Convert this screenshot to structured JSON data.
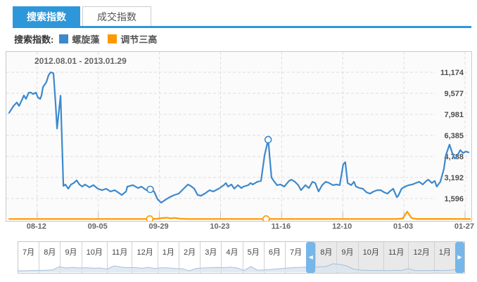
{
  "tabs": [
    {
      "label": "搜索指数",
      "active": true
    },
    {
      "label": "成交指数",
      "active": false
    }
  ],
  "legend": {
    "prefix": "搜索指数:",
    "items": [
      {
        "label": "螺旋藻",
        "color": "#3d89cd"
      },
      {
        "label": "调节三高",
        "color": "#ff9900"
      }
    ]
  },
  "colors": {
    "accent_blue": "#2e97d9",
    "series_blue": "#3d89cd",
    "series_orange": "#ff9900",
    "handle_blue": "#77b6e8",
    "selected_bg": "#e9e9e9"
  },
  "chart_data": {
    "type": "line",
    "title": "2012.08.01 - 2013.01.29",
    "xlabel": "",
    "ylabel": "",
    "grid": "dashed",
    "legend_position": "top",
    "x_range_days": [
      0,
      181
    ],
    "ylim": [
      0,
      11700
    ],
    "x_tick_labels": [
      "08-12",
      "09-05",
      "09-29",
      "10-23",
      "11-16",
      "12-10",
      "01-03",
      "01-27"
    ],
    "x_tick_days": [
      11,
      35,
      59,
      83,
      107,
      131,
      155,
      179
    ],
    "y_tick_labels": [
      "1,596",
      "3,192",
      "4,788",
      "6,385",
      "7,981",
      "9,577",
      "11,174"
    ],
    "y_tick_values": [
      1596,
      3192,
      4788,
      6385,
      7981,
      9577,
      11174
    ],
    "series": [
      {
        "name": "螺旋藻",
        "color": "#3d89cd",
        "points": [
          [
            0,
            8100
          ],
          [
            1.7,
            8620
          ],
          [
            3,
            8880
          ],
          [
            3.9,
            8620
          ],
          [
            5.2,
            9150
          ],
          [
            5.8,
            9420
          ],
          [
            6.6,
            9150
          ],
          [
            7.7,
            9630
          ],
          [
            8.6,
            9630
          ],
          [
            9.4,
            9520
          ],
          [
            10.5,
            9630
          ],
          [
            11.3,
            9260
          ],
          [
            12.2,
            9150
          ],
          [
            12.7,
            9420
          ],
          [
            13.3,
            10050
          ],
          [
            14.6,
            10430
          ],
          [
            15.5,
            10960
          ],
          [
            16.3,
            11174
          ],
          [
            17.4,
            11100
          ],
          [
            18.2,
            8880
          ],
          [
            18.8,
            6900
          ],
          [
            20.2,
            9400
          ],
          [
            21.3,
            2550
          ],
          [
            22.1,
            2660
          ],
          [
            23.2,
            2340
          ],
          [
            24.3,
            2660
          ],
          [
            25.4,
            2770
          ],
          [
            26.5,
            2980
          ],
          [
            27.6,
            2660
          ],
          [
            28.7,
            2500
          ],
          [
            29.8,
            2660
          ],
          [
            31.5,
            2450
          ],
          [
            33.1,
            2610
          ],
          [
            34.8,
            2340
          ],
          [
            36.5,
            2230
          ],
          [
            38.1,
            2340
          ],
          [
            39.8,
            2130
          ],
          [
            41.4,
            2230
          ],
          [
            43.1,
            2020
          ],
          [
            44.2,
            1860
          ],
          [
            45.9,
            2130
          ],
          [
            46.4,
            2500
          ],
          [
            48.6,
            2610
          ],
          [
            50.6,
            2390
          ],
          [
            51.9,
            2500
          ],
          [
            53.9,
            2230
          ],
          [
            55.4,
            2290
          ],
          [
            56.9,
            2130
          ],
          [
            58.3,
            1540
          ],
          [
            59.7,
            1280
          ],
          [
            61.3,
            1490
          ],
          [
            63,
            1700
          ],
          [
            64.9,
            1860
          ],
          [
            66.6,
            1970
          ],
          [
            68.5,
            2340
          ],
          [
            70.2,
            2660
          ],
          [
            71.3,
            2550
          ],
          [
            72.7,
            2340
          ],
          [
            74,
            1860
          ],
          [
            75.4,
            1810
          ],
          [
            76.8,
            1970
          ],
          [
            78.7,
            2230
          ],
          [
            80.1,
            2130
          ],
          [
            82.3,
            2340
          ],
          [
            84.3,
            2610
          ],
          [
            85.1,
            2770
          ],
          [
            85.9,
            2500
          ],
          [
            87.3,
            2660
          ],
          [
            88.4,
            2340
          ],
          [
            89.8,
            2610
          ],
          [
            91.2,
            2390
          ],
          [
            92,
            2500
          ],
          [
            93.9,
            2610
          ],
          [
            94.8,
            2770
          ],
          [
            95.6,
            2660
          ],
          [
            97.5,
            2870
          ],
          [
            98.9,
            2930
          ],
          [
            100.3,
            4890
          ],
          [
            101.7,
            6060
          ],
          [
            103,
            3190
          ],
          [
            103.9,
            2930
          ],
          [
            105.2,
            2610
          ],
          [
            106.6,
            2660
          ],
          [
            108,
            2500
          ],
          [
            109.9,
            2930
          ],
          [
            110.8,
            3030
          ],
          [
            112.2,
            2870
          ],
          [
            113.5,
            2610
          ],
          [
            114.6,
            2230
          ],
          [
            116.3,
            2610
          ],
          [
            117.7,
            2390
          ],
          [
            119.1,
            2870
          ],
          [
            120.2,
            2770
          ],
          [
            121.5,
            2130
          ],
          [
            122.9,
            2610
          ],
          [
            124.3,
            2870
          ],
          [
            125.7,
            2770
          ],
          [
            127.1,
            2610
          ],
          [
            128.5,
            2660
          ],
          [
            129.8,
            2610
          ],
          [
            131.2,
            4200
          ],
          [
            132,
            4360
          ],
          [
            132.9,
            2770
          ],
          [
            134.3,
            2610
          ],
          [
            135.4,
            2870
          ],
          [
            136.2,
            2500
          ],
          [
            137.6,
            2390
          ],
          [
            138.9,
            2340
          ],
          [
            140.3,
            2070
          ],
          [
            141.7,
            1970
          ],
          [
            143.1,
            2130
          ],
          [
            144.5,
            2230
          ],
          [
            145.9,
            2230
          ],
          [
            147.2,
            2070
          ],
          [
            148.6,
            1970
          ],
          [
            149.4,
            2130
          ],
          [
            150.8,
            2340
          ],
          [
            152.2,
            1700
          ],
          [
            152.8,
            1810
          ],
          [
            154.1,
            2340
          ],
          [
            155.5,
            2500
          ],
          [
            156.9,
            2610
          ],
          [
            158.3,
            2660
          ],
          [
            159.7,
            2770
          ],
          [
            161,
            2870
          ],
          [
            162.4,
            2660
          ],
          [
            163.8,
            2930
          ],
          [
            164.6,
            3030
          ],
          [
            166,
            2770
          ],
          [
            167.1,
            2930
          ],
          [
            167.9,
            2500
          ],
          [
            169.3,
            2870
          ],
          [
            170.7,
            3830
          ],
          [
            171.5,
            4890
          ],
          [
            172.9,
            5690
          ],
          [
            174,
            5050
          ],
          [
            174.9,
            4630
          ],
          [
            175.7,
            4730
          ],
          [
            177.1,
            5270
          ],
          [
            178.2,
            5050
          ],
          [
            179.3,
            5160
          ],
          [
            180.4,
            5100
          ]
        ]
      },
      {
        "name": "调节三高",
        "color": "#ff9900",
        "points": [
          [
            0,
            40
          ],
          [
            45,
            40
          ],
          [
            55.2,
            40
          ],
          [
            58,
            60
          ],
          [
            60,
            110
          ],
          [
            62,
            140
          ],
          [
            63.5,
            90
          ],
          [
            65,
            120
          ],
          [
            67,
            70
          ],
          [
            70,
            40
          ],
          [
            100.9,
            40
          ],
          [
            130,
            40
          ],
          [
            152,
            40
          ],
          [
            154.5,
            80
          ],
          [
            156.3,
            600
          ],
          [
            158,
            110
          ],
          [
            160,
            50
          ],
          [
            181,
            40
          ]
        ]
      }
    ],
    "markers": [
      {
        "series": 0,
        "day": 55.4,
        "value": 2290
      },
      {
        "series": 0,
        "day": 101.7,
        "value": 6060
      },
      {
        "series": 1,
        "day": 55.2,
        "value": 40
      },
      {
        "series": 1,
        "day": 100.9,
        "value": 40
      }
    ]
  },
  "timeline": {
    "months_before": [
      "7月",
      "8月",
      "9月",
      "10月",
      "11月",
      "12月",
      "1月",
      "2月",
      "3月",
      "4月",
      "5月",
      "6月",
      "7月"
    ],
    "months_selected": [
      "8月",
      "9月",
      "10月",
      "11月",
      "12月",
      "1月"
    ],
    "left_arrow_icon": "◀",
    "right_arrow_icon": "▶",
    "spark": [
      0.1,
      0.1,
      0.12,
      0.12,
      0.14,
      0.16,
      0.38,
      0.3,
      0.34,
      0.3,
      0.32,
      0.28,
      0.3,
      0.22,
      0.45,
      0.36,
      0.32,
      0.34,
      0.28,
      0.34,
      0.26,
      0.32,
      0.3,
      0.26,
      0.24,
      0.1,
      0.26,
      0.3,
      0.32,
      0.34,
      0.32,
      0.36,
      0.3,
      0.12,
      0.4,
      0.14,
      0.16,
      0.2,
      0.24,
      0.28,
      0.32,
      0.34,
      0.36,
      0.32,
      0.38,
      0.4,
      0.6,
      0.55,
      0.45,
      0.22,
      0.15,
      0.13,
      0.12,
      0.12,
      0.11,
      0.13,
      0.12,
      0.25,
      0.12,
      0.11,
      0.12,
      0.13,
      0.12,
      0.14,
      0.18,
      0.2
    ]
  }
}
